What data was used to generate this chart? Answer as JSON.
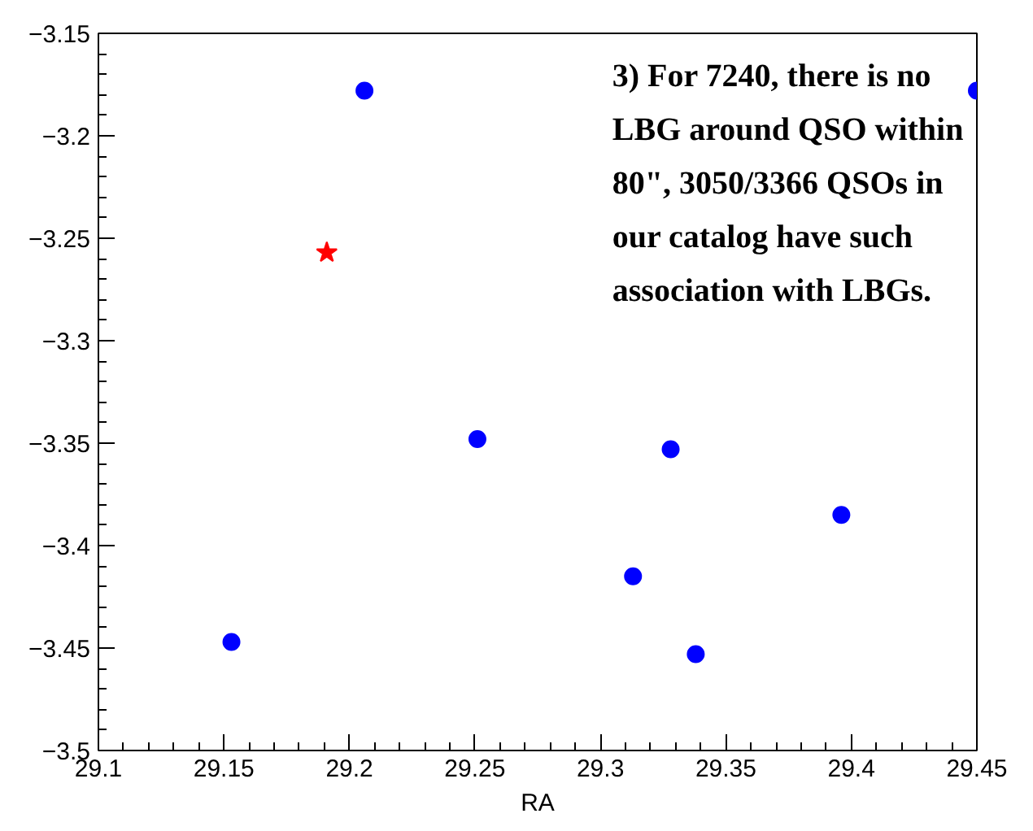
{
  "chart_data": {
    "type": "scatter",
    "xlabel": "RA",
    "xlim": [
      29.1,
      29.45
    ],
    "ylim": [
      -3.5,
      -3.15
    ],
    "xticks": [
      29.1,
      29.15,
      29.2,
      29.25,
      29.3,
      29.35,
      29.4,
      29.45
    ],
    "yticks": [
      -3.5,
      -3.45,
      -3.4,
      -3.35,
      -3.3,
      -3.25,
      -3.2,
      -3.15
    ],
    "grid": false,
    "series": [
      {
        "color": "#0000ff",
        "marker": "circle",
        "x": [
          29.206,
          29.45,
          29.251,
          29.328,
          29.396,
          29.313,
          29.338,
          29.153
        ],
        "values": [
          -3.178,
          -3.178,
          -3.348,
          -3.353,
          -3.385,
          -3.415,
          -3.453,
          -3.447
        ]
      },
      {
        "color": "#ff0000",
        "marker": "star",
        "x": [
          29.191
        ],
        "values": [
          -3.257
        ]
      }
    ],
    "annotations": [
      "3) For 7240, there is no LBG around QSO within 80\", 3050/3366 QSOs in our catalog have such association with LBGs."
    ]
  }
}
